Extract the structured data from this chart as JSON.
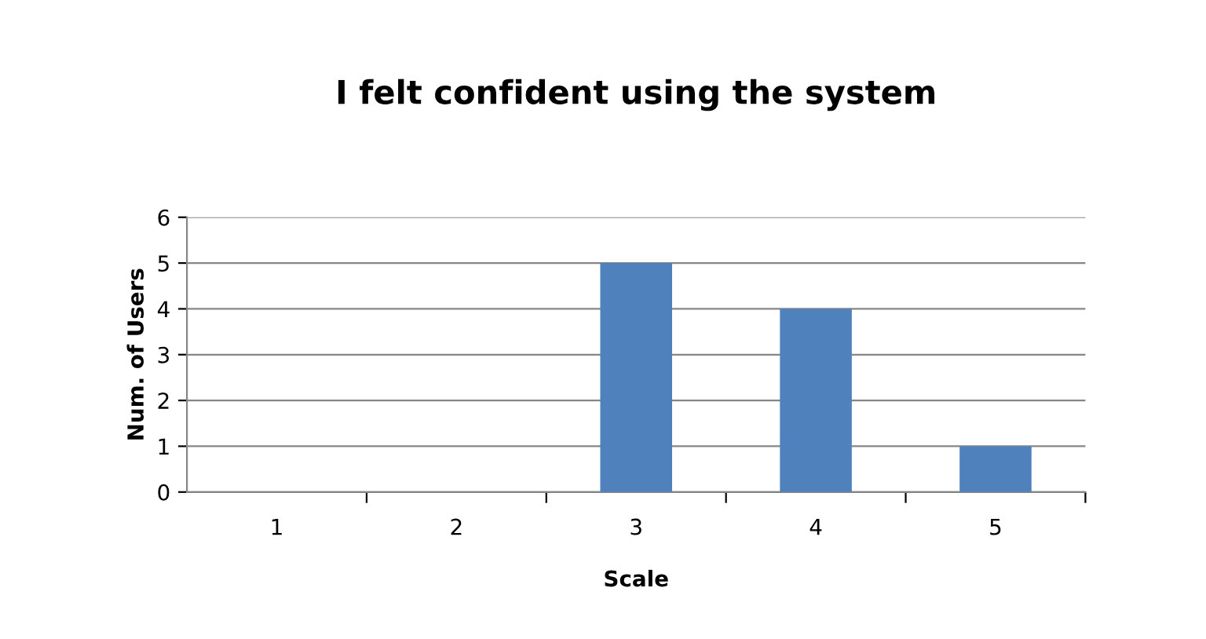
{
  "chart_data": {
    "type": "bar",
    "title": "I felt confident using the system",
    "xlabel": "Scale",
    "ylabel": "Num. of Users",
    "categories": [
      "1",
      "2",
      "3",
      "4",
      "5"
    ],
    "values": [
      0,
      0,
      5,
      4,
      1
    ],
    "color": "#4f81bd",
    "ylim": [
      0,
      6
    ],
    "yticks": [
      0,
      1,
      2,
      3,
      4,
      5,
      6
    ],
    "grid": "y"
  }
}
